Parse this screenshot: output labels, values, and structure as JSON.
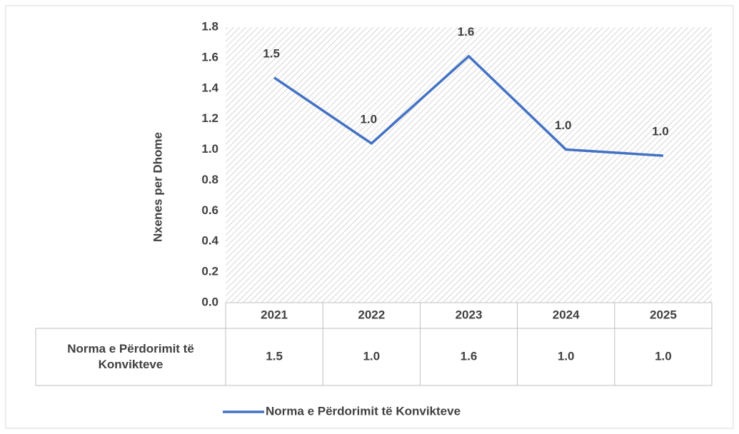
{
  "chart_data": {
    "type": "line",
    "y_label": "Nxenes per Dhome",
    "categories": [
      "2021",
      "2022",
      "2023",
      "2024",
      "2025"
    ],
    "series": [
      {
        "name": "Norma e Përdorimit të Konvikteve",
        "color": "#4472c4",
        "values": [
          1.47,
          1.04,
          1.61,
          1.0,
          0.96
        ],
        "value_labels": [
          "1.5",
          "1.0",
          "1.6",
          "1.0",
          "1.0"
        ]
      }
    ],
    "ylim": [
      0,
      1.8
    ],
    "yticks": [
      {
        "value": 0,
        "label": "0.0"
      },
      0.2,
      0.4,
      0.6,
      0.8,
      {
        "value": 1,
        "label": "1.0"
      },
      1.2,
      1.4,
      1.6,
      1.8
    ],
    "legend": "bottom",
    "data_table": true
  }
}
